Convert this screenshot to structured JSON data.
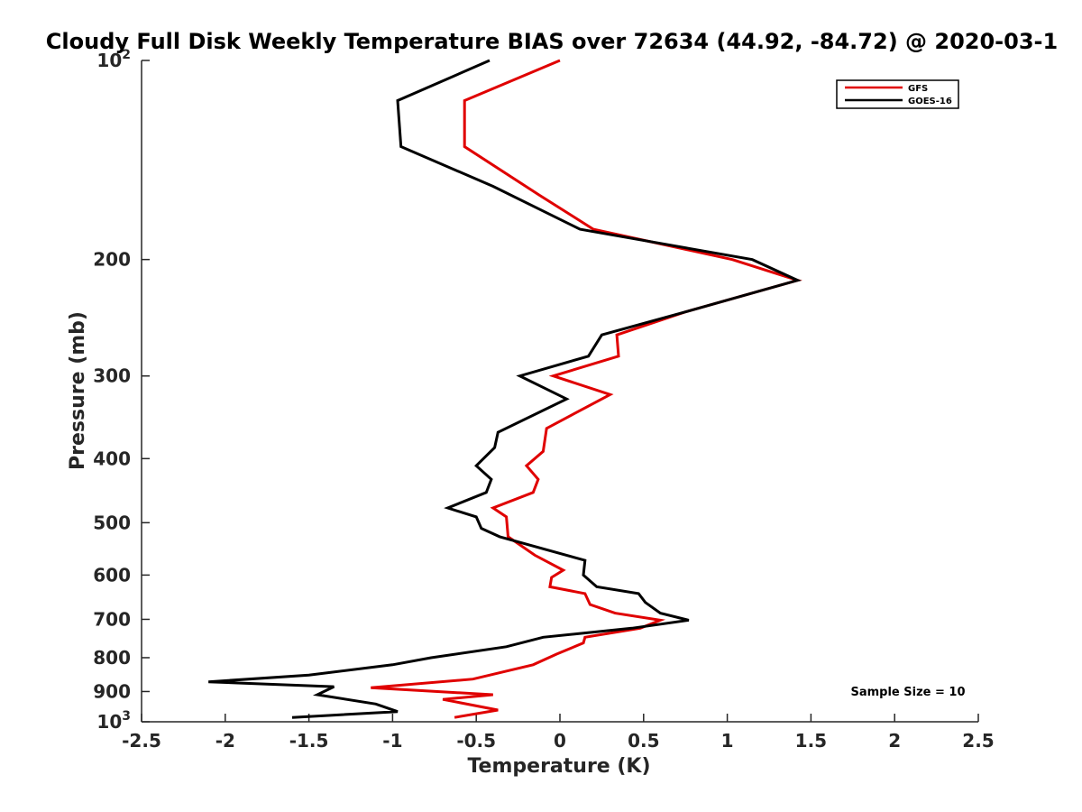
{
  "chart_data": {
    "type": "line",
    "title": "Cloudy Full Disk Weekly Temperature BIAS over 72634 (44.92, -84.72) @ 2020-03-1",
    "xlabel": "Temperature (K)",
    "ylabel": "Pressure (mb)",
    "xlim": [
      -2.5,
      2.5
    ],
    "ylim": [
      100,
      1000
    ],
    "y_scale": "log",
    "y_reversed": true,
    "grid": false,
    "legend_position": "top-right",
    "x_ticks": [
      "-2.5",
      "-2",
      "-1.5",
      "-1",
      "-0.5",
      "0",
      "0.5",
      "1",
      "1.5",
      "2",
      "2.5"
    ],
    "x_tick_values": [
      -2.5,
      -2,
      -1.5,
      -1,
      -0.5,
      0,
      0.5,
      1,
      1.5,
      2,
      2.5
    ],
    "y_ticks": [
      {
        "value": 100,
        "base": "10",
        "exp": "2"
      },
      {
        "value": 200,
        "label": "200"
      },
      {
        "value": 300,
        "label": "300"
      },
      {
        "value": 400,
        "label": "400"
      },
      {
        "value": 500,
        "label": "500"
      },
      {
        "value": 600,
        "label": "600"
      },
      {
        "value": 700,
        "label": "700"
      },
      {
        "value": 800,
        "label": "800"
      },
      {
        "value": 900,
        "label": "900"
      },
      {
        "value": 1000,
        "base": "10",
        "exp": "3"
      }
    ],
    "annotation": "Sample Size = 10",
    "series": [
      {
        "name": "GFS",
        "color": "#e00000",
        "points": [
          [
            0.0,
            100
          ],
          [
            -0.57,
            115
          ],
          [
            -0.57,
            135
          ],
          [
            -0.12,
            160
          ],
          [
            0.2,
            180
          ],
          [
            1.03,
            200
          ],
          [
            1.42,
            215
          ],
          [
            0.75,
            240
          ],
          [
            0.34,
            260
          ],
          [
            0.35,
            280
          ],
          [
            -0.04,
            300
          ],
          [
            0.3,
            320
          ],
          [
            -0.08,
            360
          ],
          [
            -0.1,
            390
          ],
          [
            -0.2,
            410
          ],
          [
            -0.13,
            430
          ],
          [
            -0.16,
            450
          ],
          [
            -0.4,
            475
          ],
          [
            -0.32,
            490
          ],
          [
            -0.31,
            525
          ],
          [
            -0.15,
            560
          ],
          [
            0.02,
            590
          ],
          [
            -0.05,
            605
          ],
          [
            -0.06,
            625
          ],
          [
            0.15,
            640
          ],
          [
            0.18,
            665
          ],
          [
            0.33,
            685
          ],
          [
            0.6,
            702
          ],
          [
            0.48,
            722
          ],
          [
            0.15,
            745
          ],
          [
            0.14,
            760
          ],
          [
            -0.02,
            790
          ],
          [
            -0.16,
            820
          ],
          [
            -0.52,
            862
          ],
          [
            -1.13,
            888
          ],
          [
            -0.4,
            910
          ],
          [
            -0.7,
            925
          ],
          [
            -0.37,
            960
          ],
          [
            -0.63,
            985
          ]
        ]
      },
      {
        "name": "GOES-16",
        "color": "#000000",
        "points": [
          [
            -0.42,
            100
          ],
          [
            -0.97,
            115
          ],
          [
            -0.95,
            135
          ],
          [
            -0.4,
            155
          ],
          [
            0.12,
            180
          ],
          [
            1.15,
            200
          ],
          [
            1.42,
            215
          ],
          [
            0.75,
            240
          ],
          [
            0.25,
            260
          ],
          [
            0.17,
            280
          ],
          [
            -0.24,
            300
          ],
          [
            0.04,
            325
          ],
          [
            -0.37,
            365
          ],
          [
            -0.39,
            385
          ],
          [
            -0.5,
            410
          ],
          [
            -0.41,
            430
          ],
          [
            -0.44,
            450
          ],
          [
            -0.67,
            475
          ],
          [
            -0.5,
            490
          ],
          [
            -0.47,
            510
          ],
          [
            -0.36,
            525
          ],
          [
            0.15,
            570
          ],
          [
            0.14,
            600
          ],
          [
            0.22,
            625
          ],
          [
            0.47,
            640
          ],
          [
            0.51,
            660
          ],
          [
            0.6,
            685
          ],
          [
            0.77,
            702
          ],
          [
            0.43,
            722
          ],
          [
            -0.1,
            745
          ],
          [
            -0.32,
            770
          ],
          [
            -0.77,
            800
          ],
          [
            -1.0,
            820
          ],
          [
            -1.5,
            850
          ],
          [
            -2.1,
            870
          ],
          [
            -1.35,
            885
          ],
          [
            -1.45,
            910
          ],
          [
            -1.1,
            940
          ],
          [
            -0.97,
            965
          ],
          [
            -1.6,
            985
          ]
        ]
      }
    ]
  }
}
